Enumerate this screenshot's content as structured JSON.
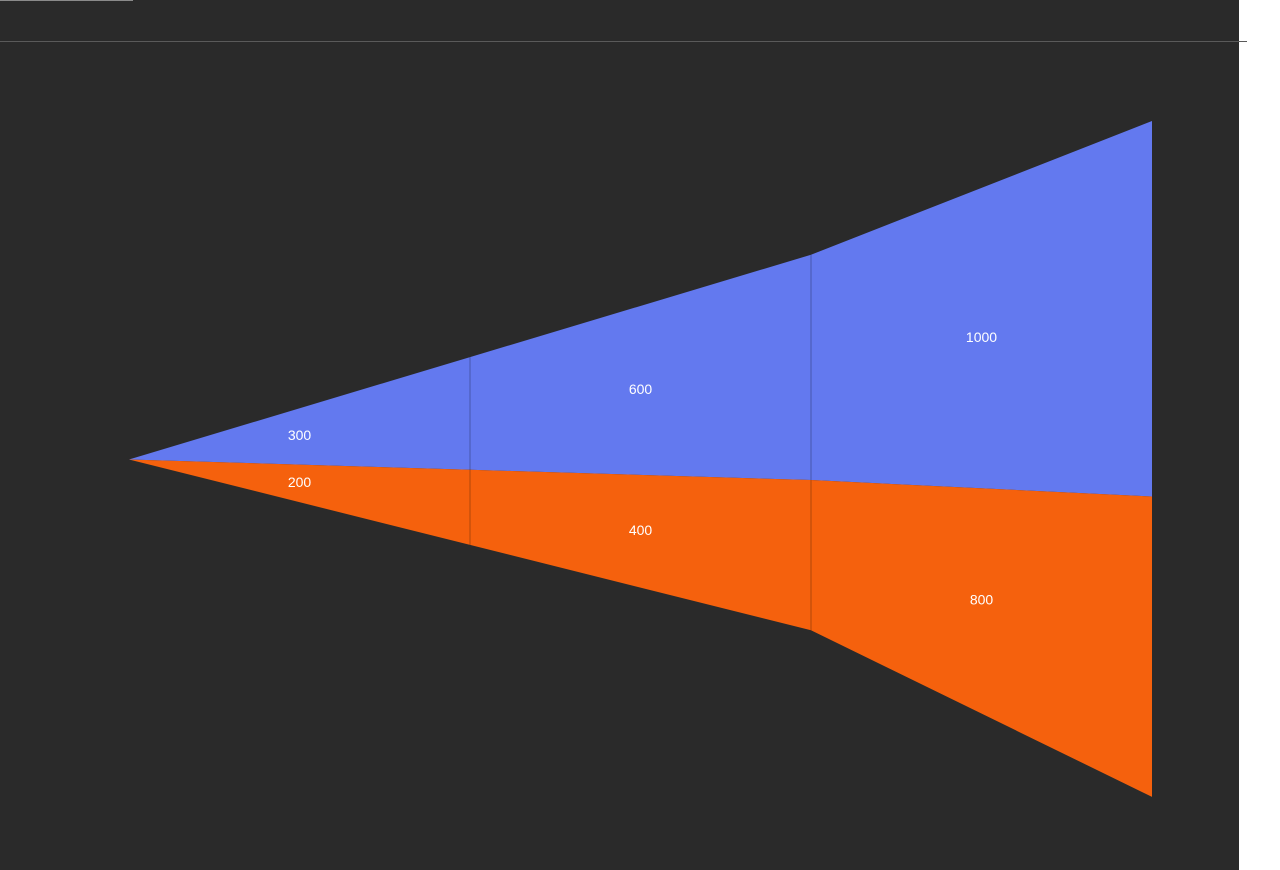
{
  "chart_data": {
    "type": "area",
    "x": [
      0,
      1,
      2,
      3
    ],
    "series": [
      {
        "values": [
          0,
          300,
          600,
          1000
        ],
        "color": "#6379ef"
      },
      {
        "values": [
          0,
          200,
          400,
          800
        ],
        "color": "#f5610d"
      }
    ],
    "labels": [
      {
        "series": 0,
        "segment": 0,
        "text": "300"
      },
      {
        "series": 0,
        "segment": 1,
        "text": "600"
      },
      {
        "series": 0,
        "segment": 2,
        "text": "1000"
      },
      {
        "series": 1,
        "segment": 0,
        "text": "200"
      },
      {
        "series": 1,
        "segment": 1,
        "text": "400"
      },
      {
        "series": 1,
        "segment": 2,
        "text": "800"
      }
    ],
    "title": "",
    "xlabel": "",
    "ylabel": "",
    "grid": false,
    "legend": "none",
    "background": "#2a2a2a"
  }
}
